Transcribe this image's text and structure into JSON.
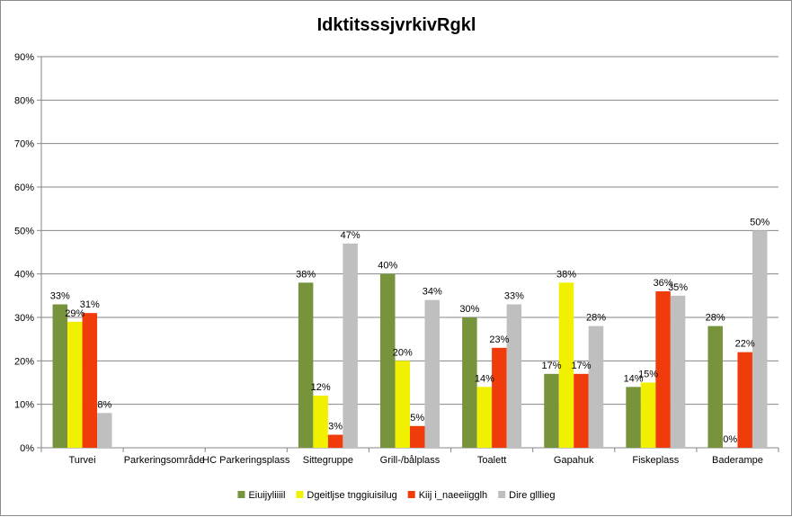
{
  "chart_data": {
    "type": "bar",
    "title": "IdktitsssjvrkivRgkl",
    "xlabel": "",
    "ylabel": "",
    "ylim": [
      0,
      90
    ],
    "y_tick_step": 10,
    "y_tick_suffix": "%",
    "grid": true,
    "legend_position": "bottom",
    "categories": [
      "Turvei",
      "Parkeringsområde",
      "HC Parkeringsplass",
      "Sittegruppe",
      "Grill-/bålplass",
      "Toalett",
      "Gapahuk",
      "Fiskeplass",
      "Baderampe"
    ],
    "series": [
      {
        "name": "Eiuijyliiiil",
        "color": "#77933c",
        "values": [
          33,
          null,
          null,
          38,
          40,
          30,
          17,
          14,
          28
        ],
        "labels": [
          "33%",
          "",
          "",
          "38%",
          "40%",
          "30%",
          "17%",
          "14%",
          "28%"
        ]
      },
      {
        "name": "Dgeitljse tnggiuisilug",
        "color": "#f0f000",
        "values": [
          29,
          null,
          null,
          12,
          20,
          14,
          38,
          15,
          0
        ],
        "labels": [
          "29%",
          "",
          "",
          "12%",
          "20%",
          "14%",
          "38%",
          "15%",
          "0%"
        ]
      },
      {
        "name": "Kiij i_naeeiigglh",
        "color": "#f03c0a",
        "values": [
          31,
          null,
          null,
          3,
          5,
          23,
          17,
          36,
          22
        ],
        "labels": [
          "31%",
          "",
          "",
          "3%",
          "5%",
          "23%",
          "17%",
          "36%",
          "22%"
        ]
      },
      {
        "name": "Dire glllieg",
        "color": "#bfbfbf",
        "values": [
          8,
          null,
          null,
          47,
          34,
          33,
          28,
          35,
          50
        ],
        "labels": [
          "8%",
          "",
          "",
          "47%",
          "34%",
          "33%",
          "28%",
          "35%",
          "50%"
        ]
      }
    ]
  }
}
